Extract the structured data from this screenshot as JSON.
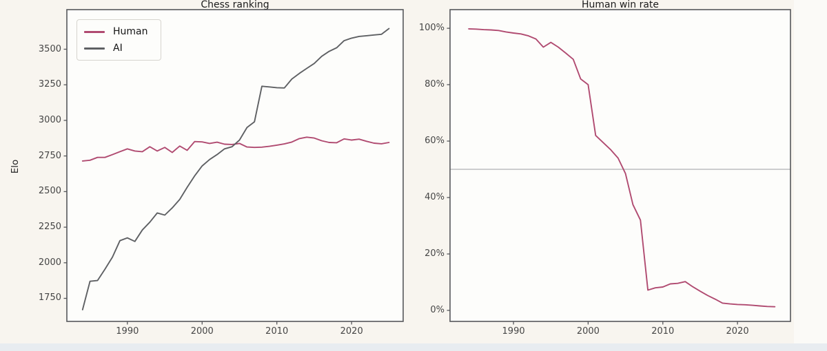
{
  "page": {
    "background": "#f8f5ef",
    "plot_background": "#fdfdfb",
    "bottom_band_color": "#e8ecf0",
    "accent_pink": "#b04a70",
    "accent_gray": "#5e6063"
  },
  "chart_data": [
    {
      "type": "line",
      "title": "Chess ranking",
      "ylabel": "Elo",
      "xlabel": "",
      "grid": false,
      "legend_position": "upper-left",
      "axis_color": "#55565a",
      "plot_bg": "#fdfdfb",
      "xlim": [
        1981.9,
        2026.9
      ],
      "ylim": [
        1588,
        3778
      ],
      "xticks": [
        {
          "v": 1990,
          "label": "1990"
        },
        {
          "v": 2000,
          "label": "2000"
        },
        {
          "v": 2010,
          "label": "2010"
        },
        {
          "v": 2020,
          "label": "2020"
        }
      ],
      "yticks": [
        {
          "v": 1750,
          "label": "1750"
        },
        {
          "v": 2000,
          "label": "2000"
        },
        {
          "v": 2250,
          "label": "2250"
        },
        {
          "v": 2500,
          "label": "2500"
        },
        {
          "v": 2750,
          "label": "2750"
        },
        {
          "v": 3000,
          "label": "3000"
        },
        {
          "v": 3250,
          "label": "3250"
        },
        {
          "v": 3500,
          "label": "3500"
        }
      ],
      "x_years": [
        1984,
        1985,
        1986,
        1987,
        1988,
        1989,
        1990,
        1991,
        1992,
        1993,
        1994,
        1995,
        1996,
        1997,
        1998,
        1999,
        2000,
        2001,
        2002,
        2003,
        2004,
        2005,
        2006,
        2007,
        2008,
        2009,
        2010,
        2011,
        2012,
        2013,
        2014,
        2015,
        2016,
        2017,
        2018,
        2019,
        2020,
        2021,
        2022,
        2023,
        2024,
        2025
      ],
      "series": [
        {
          "name": "Human",
          "color": "#b04a70",
          "values": [
            2715,
            2720,
            2740,
            2740,
            2760,
            2780,
            2800,
            2785,
            2780,
            2815,
            2785,
            2810,
            2775,
            2820,
            2790,
            2851,
            2849,
            2838,
            2847,
            2833,
            2831,
            2838,
            2813,
            2810,
            2812,
            2818,
            2826,
            2835,
            2848,
            2872,
            2882,
            2876,
            2857,
            2845,
            2843,
            2870,
            2862,
            2868,
            2853,
            2840,
            2836,
            2845
          ]
        },
        {
          "name": "AI",
          "color": "#5e6063",
          "values": [
            1670,
            1870,
            1875,
            1955,
            2040,
            2155,
            2175,
            2150,
            2230,
            2285,
            2350,
            2335,
            2385,
            2445,
            2530,
            2610,
            2680,
            2725,
            2760,
            2800,
            2815,
            2862,
            2950,
            2990,
            3240,
            3235,
            3230,
            3228,
            3290,
            3330,
            3365,
            3400,
            3450,
            3485,
            3510,
            3560,
            3578,
            3590,
            3595,
            3600,
            3605,
            3645
          ]
        }
      ]
    },
    {
      "type": "line",
      "title": "Human win rate",
      "ylabel": "",
      "xlabel": "",
      "grid": false,
      "axis_color": "#55565a",
      "plot_bg": "#fdfdfb",
      "xlim": [
        1981.5,
        2027.1
      ],
      "ylim": [
        -3.9,
        106.6
      ],
      "refline": {
        "v": 50,
        "color": "#aeb1b4"
      },
      "xticks": [
        {
          "v": 1990,
          "label": "1990"
        },
        {
          "v": 2000,
          "label": "2000"
        },
        {
          "v": 2010,
          "label": "2010"
        },
        {
          "v": 2020,
          "label": "2020"
        }
      ],
      "yticks": [
        {
          "v": 0,
          "label": "0%"
        },
        {
          "v": 20,
          "label": "20%"
        },
        {
          "v": 40,
          "label": "40%"
        },
        {
          "v": 60,
          "label": "60%"
        },
        {
          "v": 80,
          "label": "80%"
        },
        {
          "v": 100,
          "label": "100%"
        }
      ],
      "x_years": [
        1984,
        1985,
        1986,
        1987,
        1988,
        1989,
        1990,
        1991,
        1992,
        1993,
        1994,
        1995,
        1996,
        1997,
        1998,
        1999,
        2000,
        2001,
        2002,
        2003,
        2004,
        2005,
        2006,
        2007,
        2008,
        2009,
        2010,
        2011,
        2012,
        2013,
        2014,
        2015,
        2016,
        2017,
        2018,
        2019,
        2020,
        2021,
        2022,
        2023,
        2024,
        2025
      ],
      "series": [
        {
          "name": "Human win rate",
          "color": "#b04a70",
          "values": [
            99.8,
            99.7,
            99.5,
            99.4,
            99.2,
            98.7,
            98.3,
            98.0,
            97.3,
            96.2,
            93.3,
            95.0,
            93.3,
            91.2,
            89.0,
            82.0,
            80.0,
            62.0,
            59.5,
            57.0,
            54.0,
            48.5,
            37.5,
            32.0,
            7.2,
            8.0,
            8.3,
            9.4,
            9.6,
            10.2,
            8.4,
            6.8,
            5.3,
            4.0,
            2.6,
            2.3,
            2.1,
            2.0,
            1.8,
            1.6,
            1.4,
            1.3
          ]
        }
      ]
    }
  ]
}
